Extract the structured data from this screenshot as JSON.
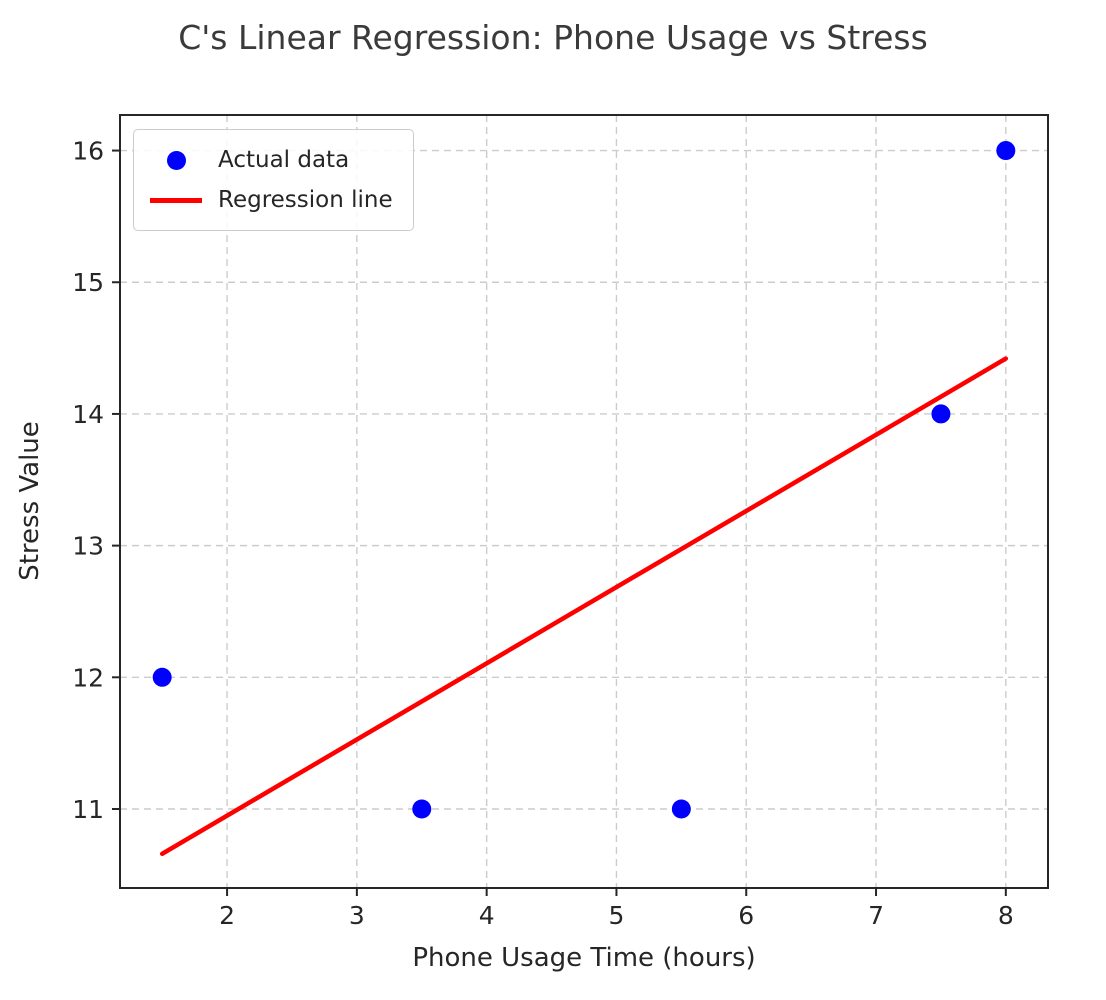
{
  "chart_data": {
    "type": "scatter",
    "title": "C's Linear Regression: Phone Usage vs Stress",
    "xlabel": "Phone Usage Time (hours)",
    "ylabel": "Stress Value",
    "xlim": [
      1.175,
      8.325
    ],
    "ylim": [
      10.4,
      16.27
    ],
    "xticks": [
      2,
      3,
      4,
      5,
      6,
      7,
      8
    ],
    "yticks": [
      11,
      12,
      13,
      14,
      15,
      16
    ],
    "grid": true,
    "grid_color": "#cccccc",
    "spine_color": "#262626",
    "legend_position": "upper left",
    "series": [
      {
        "name": "Actual data",
        "kind": "scatter",
        "color": "#0000ff",
        "x": [
          1.5,
          3.5,
          5.5,
          7.5,
          8
        ],
        "y": [
          12,
          11,
          11,
          14,
          16
        ]
      },
      {
        "name": "Regression line",
        "kind": "line",
        "color": "#ff0000",
        "x": [
          1.5,
          8
        ],
        "y": [
          10.66,
          14.42
        ]
      }
    ]
  }
}
